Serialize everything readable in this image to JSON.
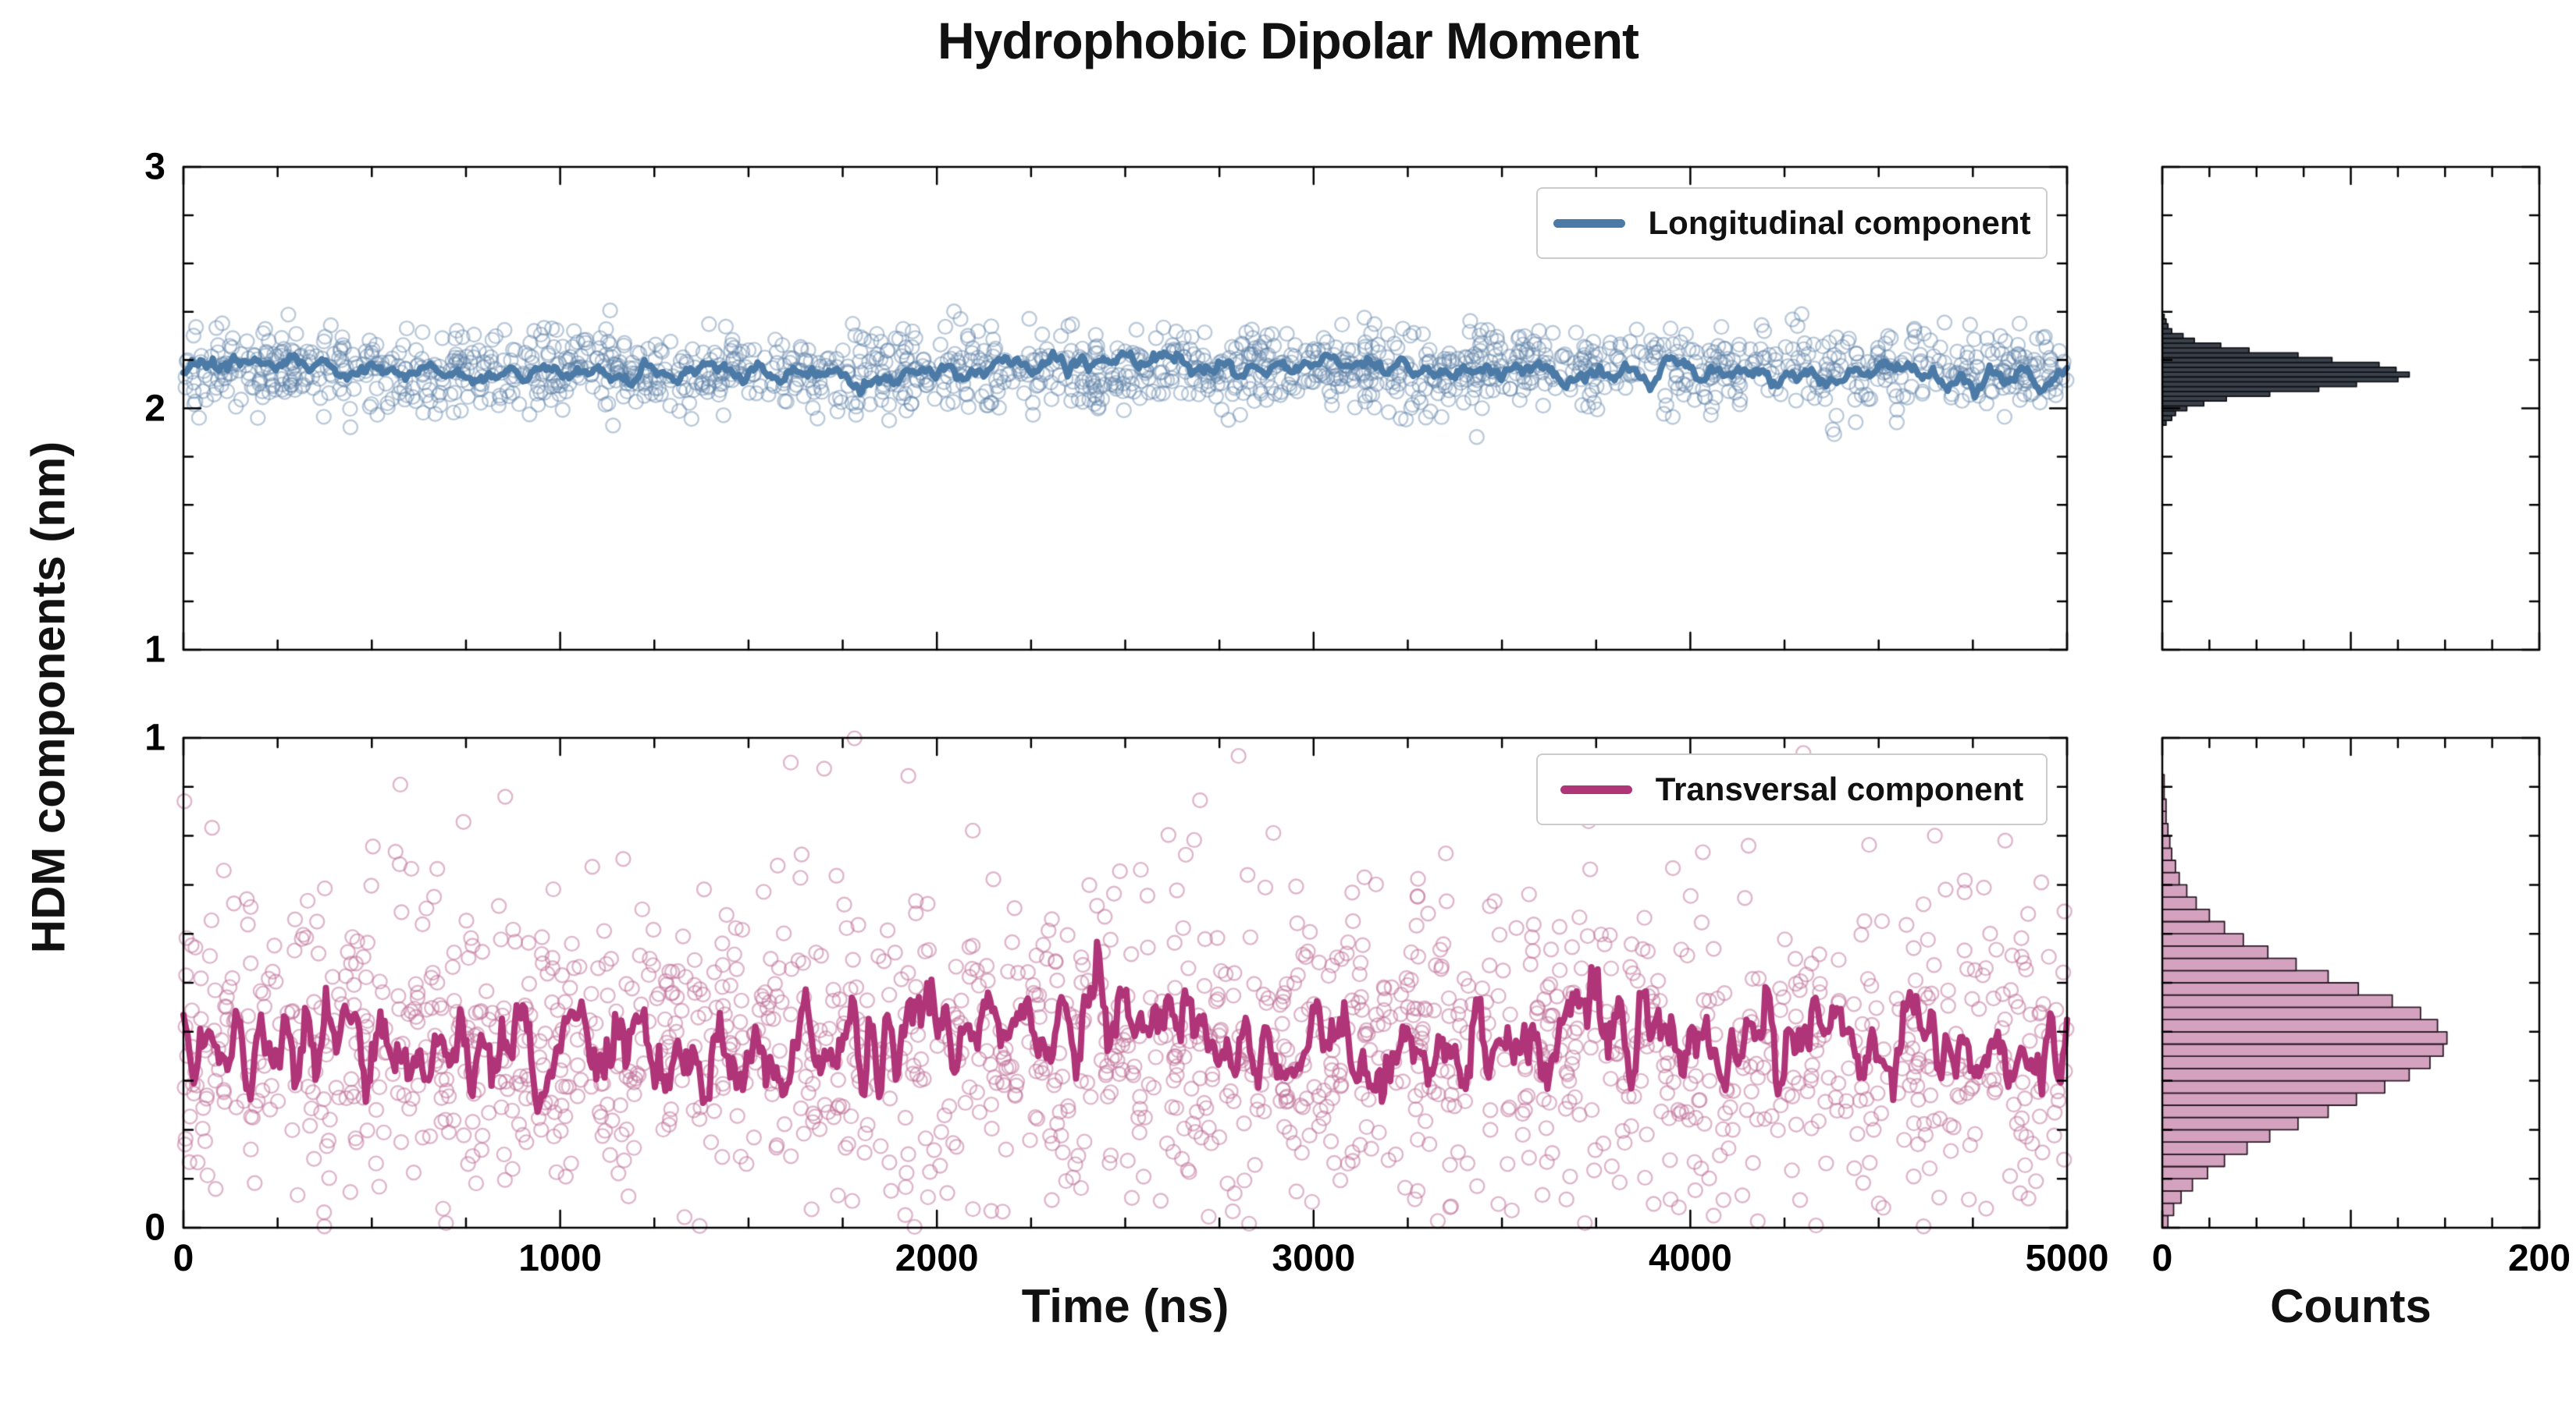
{
  "chart_data": {
    "type": "scatter",
    "title": "Hydrophobic Dipolar Moment",
    "xlabel": "Time (ns)",
    "ylabel": "HDM components (nm)",
    "counts_label": "Counts",
    "x": {
      "range": [
        0,
        5000
      ],
      "ticks": [
        0,
        1000,
        2000,
        3000,
        4000,
        5000
      ],
      "minor_step": 250
    },
    "counts_axis": {
      "range": [
        0,
        200
      ],
      "ticks": [
        0,
        200
      ],
      "majors": [
        0,
        100,
        200
      ],
      "minor_step": 25
    },
    "style": {
      "background": "#ffffff",
      "frame_color": "#000000"
    },
    "panels": [
      {
        "name": "longitudinal",
        "legend": "Longitudinal component",
        "ylim": [
          1,
          3
        ],
        "ytick_labels": [
          3,
          2,
          1
        ],
        "y_minor_step": 0.2,
        "mean": 2.16,
        "scatter_std": 0.085,
        "scatter_std2": 0.085,
        "mix": 0,
        "fold": false,
        "n_points": 1600,
        "seed": 42,
        "line_color": "#4b7aa6",
        "scatter_color": "rgba(92,128,168,0.42)",
        "line_width": 8,
        "line": {
          "segments": 900,
          "jitter": 0.024,
          "jitter_window": 3,
          "wander": 0.014,
          "wander_window": 60
        },
        "histogram": {
          "fill": "#3a414b",
          "edge": "#101216",
          "bin_width": 0.02,
          "centers": [
            1.94,
            1.96,
            1.98,
            2.0,
            2.02,
            2.04,
            2.06,
            2.08,
            2.1,
            2.12,
            2.14,
            2.16,
            2.18,
            2.2,
            2.22,
            2.24,
            2.26,
            2.28,
            2.3,
            2.32,
            2.34,
            2.36,
            2.38
          ],
          "counts": [
            2,
            5,
            7,
            13,
            22,
            34,
            57,
            83,
            103,
            125,
            131,
            124,
            115,
            90,
            72,
            46,
            31,
            17,
            11,
            5,
            3,
            2,
            1
          ]
        }
      },
      {
        "name": "transversal",
        "legend": "Transversal component",
        "ylim": [
          0,
          1
        ],
        "ytick_labels": [
          1,
          0
        ],
        "y_minor_step": 0.1,
        "mean": 0.38,
        "scatter_std": 0.15,
        "scatter_std2": 0.27,
        "mix": 0.12,
        "fold": true,
        "n_points": 1600,
        "seed": 7,
        "line_color": "#b03478",
        "scatter_color": "rgba(192,110,152,0.5)",
        "line_width": 8,
        "line": {
          "segments": 900,
          "jitter": 0.05,
          "jitter_window": 2,
          "wander": 0.02,
          "wander_window": 50
        },
        "histogram": {
          "fill": "#d4a2bf",
          "edge": "#2b1b26",
          "bin_width": 0.025,
          "centers": [
            0.0125,
            0.0375,
            0.0625,
            0.0875,
            0.1125,
            0.1375,
            0.1625,
            0.1875,
            0.2125,
            0.2375,
            0.2625,
            0.2875,
            0.3125,
            0.3375,
            0.3625,
            0.3875,
            0.4125,
            0.4375,
            0.4625,
            0.4875,
            0.5125,
            0.5375,
            0.5625,
            0.5875,
            0.6125,
            0.6375,
            0.6625,
            0.6875,
            0.7125,
            0.7375,
            0.7625,
            0.7875,
            0.8125,
            0.8375,
            0.8625,
            0.8875,
            0.9125
          ],
          "counts": [
            3,
            6,
            10,
            16,
            24,
            33,
            45,
            57,
            72,
            88,
            103,
            118,
            131,
            142,
            149,
            151,
            146,
            137,
            122,
            104,
            88,
            71,
            56,
            43,
            33,
            25,
            18,
            13,
            9,
            7,
            5,
            4,
            3,
            2,
            2,
            1,
            1
          ]
        }
      }
    ]
  }
}
